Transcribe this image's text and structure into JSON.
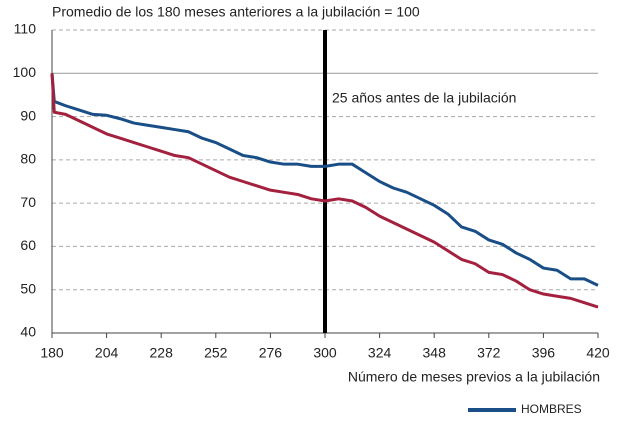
{
  "chart_data": {
    "type": "line",
    "title": "Promedio de los 180 meses anteriores a la jubilación = 100",
    "x_label": "Número de meses previos a la jubilación",
    "annotation": {
      "x": 300,
      "text": "25 años antes de la jubilación"
    },
    "x": [
      180,
      181,
      186,
      192,
      198,
      204,
      210,
      216,
      222,
      228,
      234,
      240,
      246,
      252,
      258,
      264,
      270,
      276,
      282,
      288,
      294,
      300,
      306,
      312,
      318,
      324,
      330,
      336,
      342,
      348,
      354,
      360,
      366,
      372,
      378,
      384,
      390,
      396,
      402,
      408,
      414,
      420
    ],
    "series": [
      {
        "name": "HOMBRES",
        "color": "#1a4e86",
        "values": [
          100,
          93.5,
          92.5,
          91.5,
          90.5,
          90.3,
          89.5,
          88.5,
          88,
          87.5,
          87,
          86.5,
          85,
          84,
          82.5,
          81,
          80.5,
          79.5,
          79,
          79,
          78.5,
          78.5,
          79,
          79,
          77,
          75,
          73.5,
          72.5,
          71,
          69.5,
          67.5,
          64.5,
          63.5,
          61.5,
          60.5,
          58.5,
          57,
          55,
          54.5,
          52.5,
          52.5,
          51
        ]
      },
      {
        "color": "#a3213f",
        "values": [
          100,
          91,
          90.5,
          89,
          87.5,
          86,
          85,
          84,
          83,
          82,
          81,
          80.5,
          79,
          77.5,
          76,
          75,
          74,
          73,
          72.5,
          72,
          71,
          70.5,
          71,
          70.5,
          69,
          67,
          65.5,
          64,
          62.5,
          61,
          59,
          57,
          56,
          54,
          53.5,
          52,
          50,
          49,
          48.5,
          48,
          47,
          46
        ]
      }
    ],
    "xlim": [
      180,
      420
    ],
    "xticks": [
      180,
      204,
      228,
      252,
      276,
      300,
      324,
      348,
      372,
      396,
      420
    ],
    "ylim": [
      40,
      110
    ],
    "yticks": [
      40,
      50,
      60,
      70,
      80,
      90,
      100,
      110
    ],
    "grid": true,
    "legend": "bottom-right"
  }
}
